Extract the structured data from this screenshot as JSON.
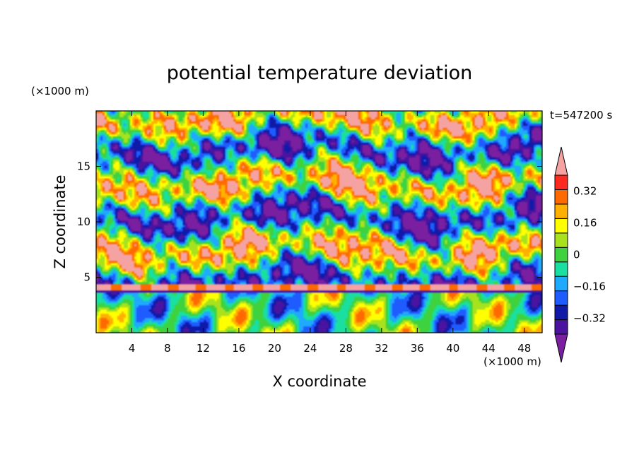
{
  "chart_data": {
    "type": "heatmap",
    "title": "potential temperature deviation",
    "xlabel": "X coordinate",
    "ylabel": "Z coordinate",
    "x_unit": "(×1000 m)",
    "y_unit": "(×1000 m)",
    "time_label": "t=547200 s",
    "xlim": [
      0,
      50
    ],
    "ylim": [
      0,
      20
    ],
    "x_ticks": [
      4,
      8,
      12,
      16,
      20,
      24,
      28,
      32,
      36,
      40,
      44,
      48
    ],
    "y_ticks": [
      5,
      10,
      15
    ],
    "colorbar": {
      "levels": [
        -0.4,
        -0.32,
        -0.24,
        -0.16,
        -0.08,
        0,
        0.08,
        0.16,
        0.24,
        0.32,
        0.4
      ],
      "labeled_ticks": [
        0.32,
        0.16,
        0,
        -0.16,
        -0.32
      ],
      "tick_labels": [
        "0.32",
        "0.16",
        "0",
        "−0.16",
        "−0.32"
      ],
      "colors": [
        "#7a1fa0",
        "#4a14a0",
        "#101aa8",
        "#1f5cff",
        "#1fa9ff",
        "#19e0a0",
        "#3fd23f",
        "#a8e21f",
        "#ffff00",
        "#ffb000",
        "#ff6a00",
        "#ff2a1f",
        "#f4a2a2"
      ],
      "extends": "both"
    }
  }
}
